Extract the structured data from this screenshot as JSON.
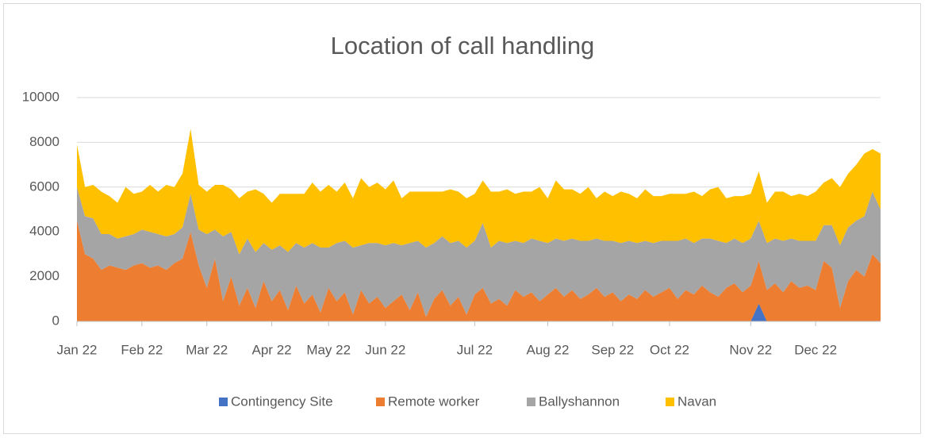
{
  "chart_data": {
    "type": "area",
    "stacked": true,
    "title": "Location of call handling",
    "categories": [
      "Jan 22",
      null,
      null,
      null,
      null,
      null,
      null,
      null,
      "Feb 22",
      null,
      null,
      null,
      null,
      null,
      null,
      null,
      "Mar 22",
      null,
      null,
      null,
      null,
      null,
      null,
      null,
      "Apr 22",
      null,
      null,
      null,
      null,
      null,
      null,
      "May 22",
      null,
      null,
      null,
      null,
      null,
      null,
      "Jun 22",
      null,
      null,
      null,
      null,
      null,
      null,
      null,
      null,
      null,
      null,
      "Jul 22",
      null,
      null,
      null,
      null,
      null,
      null,
      null,
      null,
      "Aug 22",
      null,
      null,
      null,
      null,
      null,
      null,
      null,
      "Sep 22",
      null,
      null,
      null,
      null,
      null,
      null,
      "Oct 22",
      null,
      null,
      null,
      null,
      null,
      null,
      null,
      null,
      null,
      "Nov 22",
      null,
      null,
      null,
      null,
      null,
      null,
      null,
      "Dec 22",
      null,
      null,
      null,
      null,
      null,
      null,
      null,
      null
    ],
    "series": [
      {
        "name": "Contingency Site",
        "color": "#4472c4",
        "values": [
          0,
          0,
          0,
          0,
          0,
          0,
          0,
          0,
          0,
          0,
          0,
          0,
          0,
          0,
          0,
          0,
          0,
          0,
          0,
          0,
          0,
          0,
          0,
          0,
          0,
          0,
          0,
          0,
          0,
          0,
          0,
          0,
          0,
          0,
          0,
          0,
          0,
          0,
          0,
          0,
          0,
          0,
          0,
          0,
          0,
          0,
          0,
          0,
          0,
          0,
          0,
          0,
          0,
          0,
          0,
          0,
          0,
          0,
          0,
          0,
          0,
          0,
          0,
          0,
          0,
          0,
          0,
          0,
          0,
          0,
          0,
          0,
          0,
          0,
          0,
          0,
          0,
          0,
          0,
          0,
          0,
          0,
          0,
          0,
          800,
          0,
          0,
          0,
          0,
          0,
          0,
          0,
          0,
          0,
          0,
          0,
          0,
          0,
          0,
          0
        ]
      },
      {
        "name": "Remote worker",
        "color": "#ed7d31",
        "values": [
          4500,
          3000,
          2800,
          2300,
          2500,
          2400,
          2300,
          2500,
          2600,
          2400,
          2500,
          2300,
          2600,
          2800,
          4000,
          2500,
          1500,
          2800,
          900,
          2000,
          700,
          1500,
          600,
          1800,
          900,
          1400,
          500,
          1600,
          800,
          1200,
          400,
          1500,
          900,
          1300,
          300,
          1400,
          800,
          1100,
          600,
          900,
          1200,
          500,
          1300,
          200,
          1000,
          1400,
          700,
          1100,
          300,
          1200,
          1500,
          800,
          1000,
          700,
          1400,
          1100,
          1300,
          900,
          1200,
          1500,
          1100,
          1400,
          1000,
          1200,
          1500,
          1100,
          1300,
          900,
          1200,
          1000,
          1400,
          1100,
          1300,
          1500,
          1000,
          1400,
          1200,
          1600,
          1300,
          1100,
          1500,
          1700,
          1300,
          1600,
          1900,
          1400,
          1700,
          1300,
          1800,
          1500,
          1600,
          1400,
          2700,
          2400,
          600,
          1800,
          2300,
          2000,
          3000,
          2600
        ]
      },
      {
        "name": "Ballyshannon",
        "color": "#a5a5a5",
        "values": [
          1500,
          1700,
          1800,
          1600,
          1400,
          1300,
          1500,
          1400,
          1500,
          1600,
          1400,
          1500,
          1300,
          1400,
          1700,
          1600,
          2400,
          1300,
          2900,
          2000,
          2300,
          2200,
          2500,
          1700,
          2300,
          2000,
          2600,
          1900,
          2500,
          2300,
          2900,
          1800,
          2600,
          2300,
          3000,
          2000,
          2700,
          2400,
          2800,
          2600,
          2200,
          3000,
          2300,
          3100,
          2500,
          2400,
          2800,
          2500,
          3000,
          2400,
          2900,
          2500,
          2600,
          2800,
          2200,
          2400,
          2400,
          2700,
          2300,
          2200,
          2500,
          2300,
          2600,
          2400,
          2200,
          2500,
          2300,
          2600,
          2400,
          2500,
          2200,
          2400,
          2300,
          2100,
          2600,
          2300,
          2300,
          2100,
          2400,
          2500,
          2000,
          2000,
          2200,
          2100,
          1800,
          2100,
          2000,
          2300,
          1900,
          2100,
          2000,
          2200,
          1600,
          1900,
          2800,
          2400,
          2200,
          2700,
          2800,
          2400
        ]
      },
      {
        "name": "Navan",
        "color": "#ffc000",
        "values": [
          1900,
          1300,
          1500,
          1900,
          1700,
          1600,
          2200,
          1800,
          1700,
          2100,
          1900,
          2300,
          2100,
          2400,
          2900,
          2000,
          1900,
          2000,
          2300,
          1900,
          2500,
          2100,
          2800,
          2200,
          2100,
          2300,
          2600,
          2200,
          2400,
          2700,
          2500,
          2800,
          2300,
          2600,
          2200,
          3000,
          2500,
          2700,
          2500,
          2800,
          2100,
          2300,
          2200,
          2500,
          2300,
          2000,
          2400,
          2200,
          2200,
          2100,
          1900,
          2500,
          2200,
          2400,
          2100,
          2300,
          2100,
          2400,
          2000,
          2600,
          2300,
          2200,
          2100,
          2400,
          1800,
          2200,
          2000,
          2300,
          2100,
          2000,
          2300,
          2100,
          2000,
          2100,
          2100,
          2000,
          2300,
          1900,
          2200,
          2400,
          2000,
          1900,
          2100,
          2000,
          2200,
          1800,
          2100,
          2200,
          1900,
          2100,
          2000,
          2200,
          1900,
          2100,
          2600,
          2400,
          2500,
          2800,
          1900,
          2500
        ]
      }
    ],
    "ylim": [
      0,
      10000
    ],
    "yticks": [
      0,
      2000,
      4000,
      6000,
      8000,
      10000
    ],
    "grid": true,
    "legend": "bottom"
  }
}
